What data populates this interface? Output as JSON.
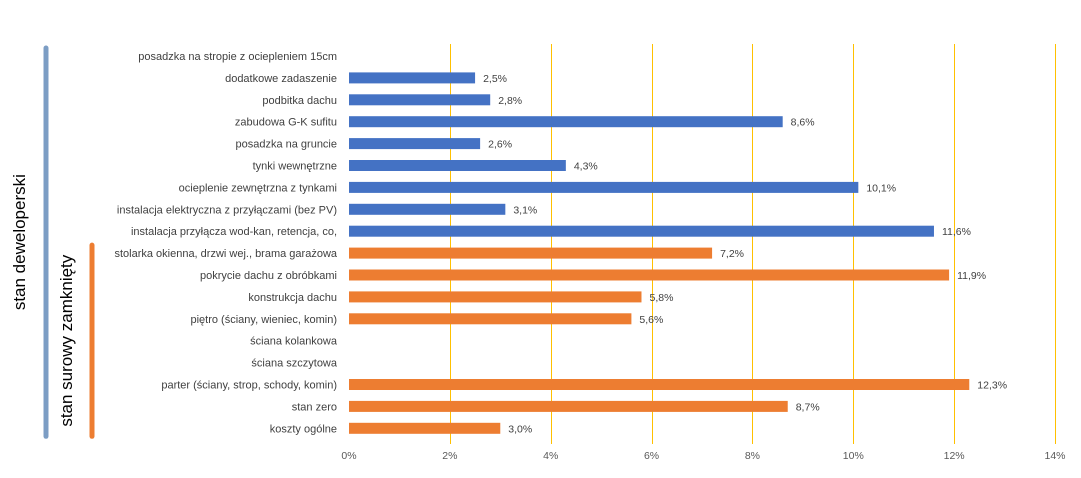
{
  "chart_data": {
    "type": "bar",
    "orientation": "horizontal",
    "categories": [
      "posadzka na stropie z ociepleniem 15cm",
      "dodatkowe zadaszenie",
      "podbitka dachu",
      "zabudowa G-K sufitu",
      "posadzka na gruncie",
      "tynki wewnętrzne",
      "ocieplenie zewnętrzna z tynkami",
      "instalacja elektryczna z przyłączami (bez PV)",
      "instalacja przyłącza wod-kan, retencja, co,",
      "stolarka okienna, drzwi wej., brama garażowa",
      "pokrycie dachu z obróbkami",
      "konstrukcja dachu",
      "piętro (ściany, wieniec, komin)",
      "ściana kolankowa",
      "ściana szczytowa",
      "parter (ściany, strop, schody, komin)",
      "stan zero",
      "koszty ogólne"
    ],
    "values": [
      null,
      2.5,
      2.8,
      8.6,
      2.6,
      4.3,
      10.1,
      3.1,
      11.6,
      7.2,
      11.9,
      5.8,
      5.6,
      null,
      null,
      12.3,
      8.7,
      3.0
    ],
    "data_labels": [
      "",
      "2,5%",
      "2,8%",
      "8,6%",
      "2,6%",
      "4,3%",
      "10,1%",
      "3,1%",
      "11,6%",
      "7,2%",
      "11,9%",
      "5,8%",
      "5,6%",
      "",
      "",
      "12,3%",
      "8,7%",
      "3,0%"
    ],
    "bar_colors": [
      "#4472C4",
      "#4472C4",
      "#4472C4",
      "#4472C4",
      "#4472C4",
      "#4472C4",
      "#4472C4",
      "#4472C4",
      "#4472C4",
      "#ED7D31",
      "#ED7D31",
      "#ED7D31",
      "#ED7D31",
      "#ED7D31",
      "#ED7D31",
      "#ED7D31",
      "#ED7D31",
      "#ED7D31"
    ],
    "x_ticks": [
      0,
      2,
      4,
      6,
      8,
      10,
      12,
      14
    ],
    "x_tick_labels": [
      "0%",
      "2%",
      "4%",
      "6%",
      "8%",
      "10%",
      "12%",
      "14%"
    ],
    "xlim": [
      0,
      14
    ],
    "gridlines": "vertical",
    "gridline_color": "#FFC000",
    "groups": [
      {
        "label": "stan deweloperski",
        "color": "#7C9DC4",
        "from_index": 0,
        "to_index": 17
      },
      {
        "label": "stan surowy zamknięty",
        "color": "#ED7D31",
        "from_index": 9,
        "to_index": 17
      }
    ],
    "title": "",
    "xlabel": "",
    "ylabel": ""
  }
}
